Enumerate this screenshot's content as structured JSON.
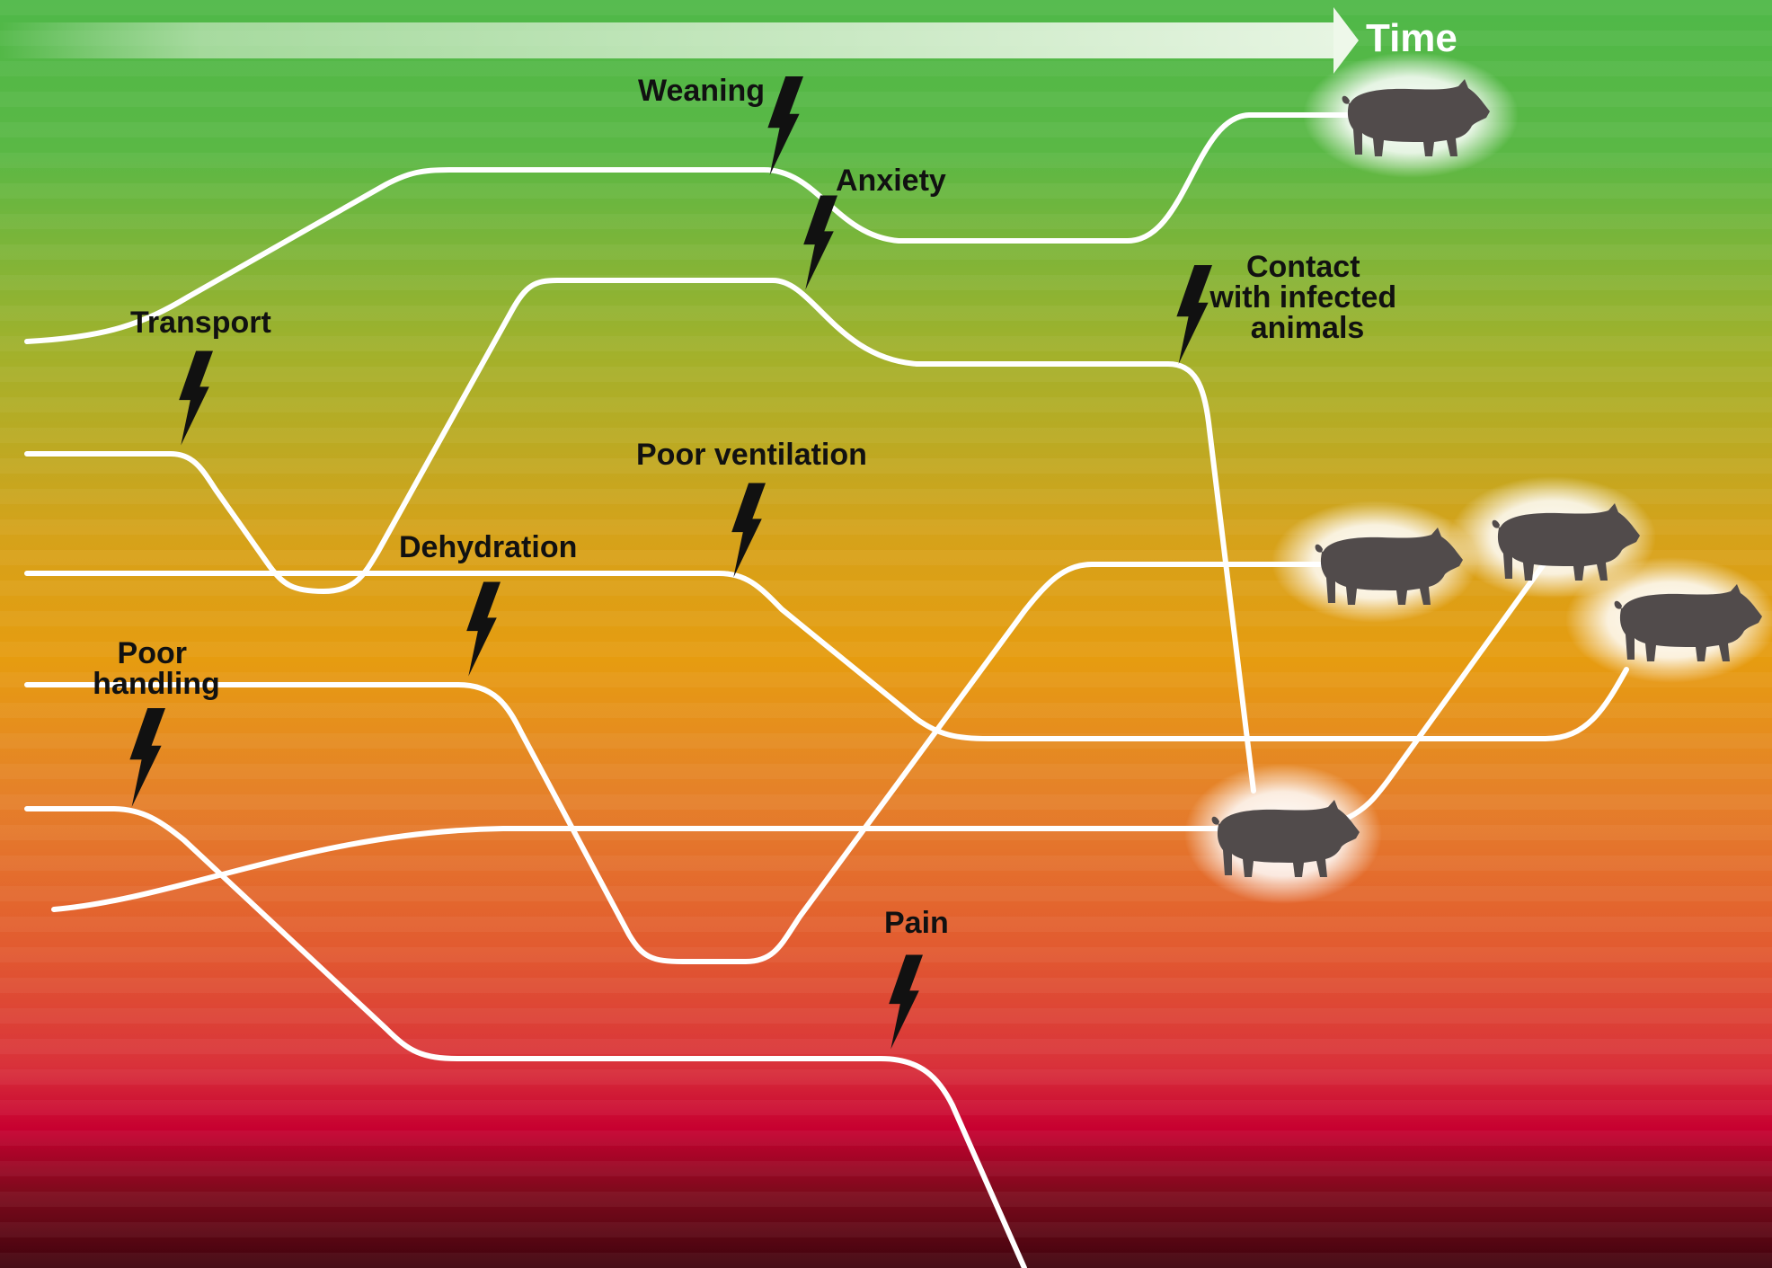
{
  "time_label": "Time",
  "stressors": {
    "weaning": "Weaning",
    "anxiety": "Anxiety",
    "transport": "Transport",
    "contact": [
      "Contact",
      "with infected",
      "animals"
    ],
    "poor_ventilation": "Poor ventilation",
    "dehydration": "Dehydration",
    "poor_handling": [
      "Poor",
      "handling"
    ],
    "pain": "Pain"
  },
  "colors": {
    "top": "#5ab846",
    "upper_mid": "#b3b02a",
    "middle": "#e39a12",
    "lower_mid": "#e45a2e",
    "red": "#c4002e",
    "bottom": "#4a0410",
    "line": "#ffffff",
    "pig": "#514b4b",
    "bolt": "#111111"
  },
  "icons": [
    "lightning-bolt-icon",
    "pig-icon",
    "time-arrow-icon"
  ]
}
